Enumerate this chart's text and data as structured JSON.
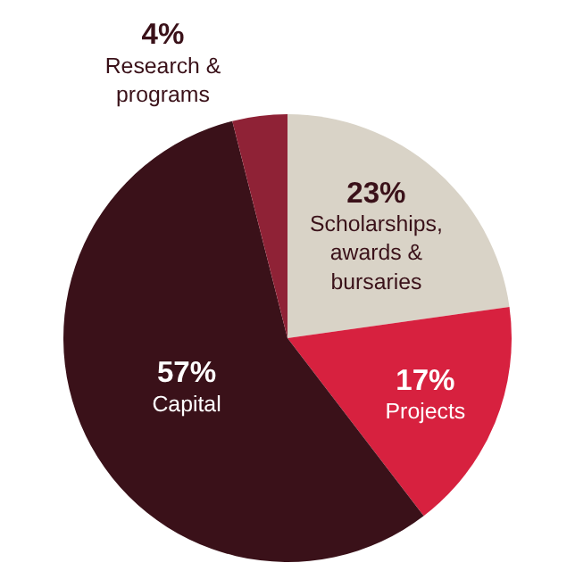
{
  "chart_data": {
    "type": "pie",
    "categories": [
      "Scholarships, awards & bursaries",
      "Projects",
      "Capital",
      "Research & programs"
    ],
    "values": [
      23,
      17,
      57,
      4
    ],
    "colors": [
      "#d9d3c7",
      "#d7213f",
      "#3a1119",
      "#8f2236"
    ],
    "value_labels": [
      "23%",
      "17%",
      "57%",
      "4%"
    ],
    "legend": false
  }
}
